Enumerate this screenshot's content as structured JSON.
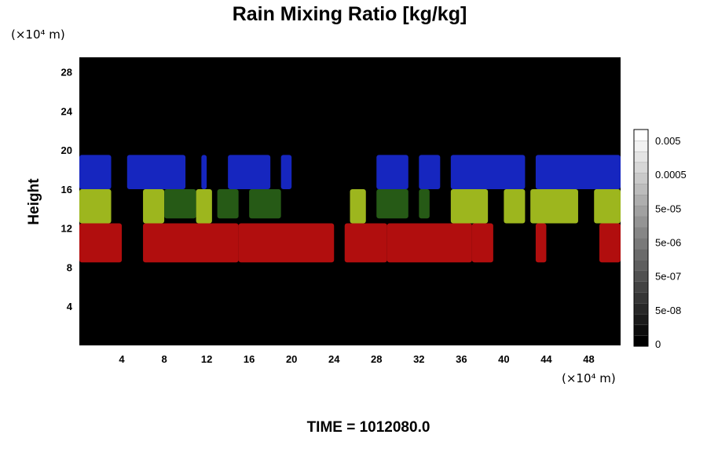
{
  "chart_data": {
    "type": "heatmap",
    "title": "Rain Mixing Ratio [kg/kg]",
    "ylabel": "Height",
    "x_unit": "(×10⁴ m)",
    "y_unit": "(×10⁴ m)",
    "xlim": [
      0,
      51
    ],
    "ylim": [
      0,
      29.5
    ],
    "x_ticks": [
      4,
      8,
      12,
      16,
      20,
      24,
      28,
      32,
      36,
      40,
      44,
      48
    ],
    "y_ticks": [
      4,
      8,
      12,
      16,
      20,
      24,
      28
    ],
    "background_color": "#000000",
    "bands": [
      {
        "color": "#1a2de0",
        "y_range": [
          16,
          19.5
        ],
        "segments": [
          [
            0,
            3
          ],
          [
            4.5,
            10
          ],
          [
            11.5,
            12
          ],
          [
            14,
            18
          ],
          [
            19,
            20
          ],
          [
            28,
            31
          ],
          [
            32,
            34
          ],
          [
            35,
            42
          ],
          [
            43,
            51
          ]
        ]
      },
      {
        "color": "#b9d623",
        "y_range": [
          12.5,
          16
        ],
        "segments": [
          [
            0,
            3
          ],
          [
            6,
            8
          ],
          [
            11,
            12.5
          ],
          [
            25.5,
            27
          ],
          [
            35,
            38.5
          ],
          [
            40,
            42
          ],
          [
            42.5,
            47
          ],
          [
            48.5,
            51
          ]
        ]
      },
      {
        "color": "#2d6a1a",
        "y_range": [
          13,
          16
        ],
        "segments": [
          [
            8,
            11
          ],
          [
            13,
            15
          ],
          [
            16,
            19
          ],
          [
            28,
            31
          ],
          [
            32,
            33
          ]
        ]
      },
      {
        "color": "#d01010",
        "y_range": [
          8.5,
          12.5
        ],
        "segments": [
          [
            0,
            4
          ],
          [
            6,
            15
          ],
          [
            15,
            24
          ],
          [
            25,
            29
          ],
          [
            29,
            37
          ],
          [
            37,
            39
          ],
          [
            43,
            44
          ],
          [
            49,
            51
          ]
        ]
      }
    ],
    "colorbar": {
      "ticks": [
        "0.005",
        "0.0005",
        "5e-05",
        "5e-06",
        "5e-07",
        "5e-08",
        "0"
      ],
      "range_colors": [
        "#000000",
        "#ffffff"
      ]
    },
    "time_label": "TIME = 1012080.0"
  }
}
